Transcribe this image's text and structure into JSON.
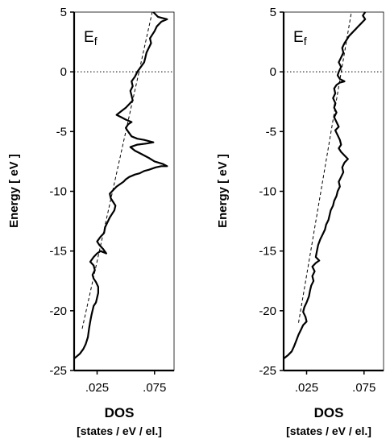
{
  "chart_data": [
    {
      "type": "line",
      "title": "",
      "xlabel": "DOS",
      "xlabel_units": "[states / eV / el.]",
      "ylabel": "Energy",
      "ylabel_units": "[ eV ]",
      "xlim": [
        0.005,
        0.092
      ],
      "ylim": [
        -25,
        5
      ],
      "xticks": [
        ".025",
        ".075"
      ],
      "xtick_values": [
        0.025,
        0.075
      ],
      "yticks": [
        "5",
        "0",
        "-5",
        "-10",
        "-15",
        "-20",
        "-25"
      ],
      "ytick_values": [
        5,
        0,
        -5,
        -10,
        -15,
        -20,
        -25
      ],
      "fermi_level": {
        "label": "E",
        "subscript": "f",
        "energy": 0,
        "style": "dotted"
      },
      "grid": false,
      "series": [
        {
          "style": "solid",
          "points": [
            [
              0.005,
              -24.0
            ],
            [
              0.01,
              -23.6
            ],
            [
              0.013,
              -23.2
            ],
            [
              0.015,
              -22.8
            ],
            [
              0.017,
              -22.2
            ],
            [
              0.018,
              -21.5
            ],
            [
              0.019,
              -20.9
            ],
            [
              0.02,
              -20.4
            ],
            [
              0.021,
              -20.0
            ],
            [
              0.022,
              -19.6
            ],
            [
              0.024,
              -19.3
            ],
            [
              0.025,
              -18.9
            ],
            [
              0.026,
              -18.5
            ],
            [
              0.026,
              -18.0
            ],
            [
              0.024,
              -17.6
            ],
            [
              0.022,
              -17.3
            ],
            [
              0.021,
              -17.0
            ],
            [
              0.023,
              -16.6
            ],
            [
              0.022,
              -16.2
            ],
            [
              0.019,
              -15.9
            ],
            [
              0.022,
              -15.5
            ],
            [
              0.025,
              -15.2
            ],
            [
              0.028,
              -15.0
            ],
            [
              0.033,
              -15.2
            ],
            [
              0.03,
              -14.8
            ],
            [
              0.027,
              -14.5
            ],
            [
              0.025,
              -14.2
            ],
            [
              0.028,
              -13.8
            ],
            [
              0.031,
              -13.5
            ],
            [
              0.032,
              -13.0
            ],
            [
              0.034,
              -12.6
            ],
            [
              0.036,
              -12.2
            ],
            [
              0.038,
              -11.9
            ],
            [
              0.04,
              -11.6
            ],
            [
              0.041,
              -11.2
            ],
            [
              0.039,
              -10.9
            ],
            [
              0.037,
              -10.6
            ],
            [
              0.036,
              -10.2
            ],
            [
              0.039,
              -9.9
            ],
            [
              0.042,
              -9.6
            ],
            [
              0.045,
              -9.4
            ],
            [
              0.048,
              -9.2
            ],
            [
              0.05,
              -9.0
            ],
            [
              0.053,
              -8.8
            ],
            [
              0.058,
              -8.6
            ],
            [
              0.062,
              -8.5
            ],
            [
              0.066,
              -8.3
            ],
            [
              0.07,
              -8.2
            ],
            [
              0.076,
              -8.0
            ],
            [
              0.081,
              -7.9
            ],
            [
              0.086,
              -7.9
            ],
            [
              0.082,
              -7.7
            ],
            [
              0.075,
              -7.5
            ],
            [
              0.07,
              -7.2
            ],
            [
              0.066,
              -7.0
            ],
            [
              0.062,
              -6.8
            ],
            [
              0.058,
              -6.6
            ],
            [
              0.054,
              -6.3
            ],
            [
              0.06,
              -6.1
            ],
            [
              0.068,
              -6.0
            ],
            [
              0.074,
              -5.9
            ],
            [
              0.066,
              -5.7
            ],
            [
              0.06,
              -5.6
            ],
            [
              0.055,
              -5.4
            ],
            [
              0.052,
              -5.0
            ],
            [
              0.05,
              -4.7
            ],
            [
              0.052,
              -4.4
            ],
            [
              0.055,
              -4.2
            ],
            [
              0.05,
              -4.0
            ],
            [
              0.046,
              -3.8
            ],
            [
              0.042,
              -3.6
            ],
            [
              0.046,
              -3.3
            ],
            [
              0.05,
              -3.0
            ],
            [
              0.053,
              -2.7
            ],
            [
              0.056,
              -2.4
            ],
            [
              0.055,
              -2.0
            ],
            [
              0.054,
              -1.6
            ],
            [
              0.056,
              -1.2
            ],
            [
              0.055,
              -0.8
            ],
            [
              0.058,
              -0.4
            ],
            [
              0.06,
              0.0
            ],
            [
              0.063,
              0.4
            ],
            [
              0.066,
              0.8
            ],
            [
              0.067,
              1.2
            ],
            [
              0.068,
              1.6
            ],
            [
              0.07,
              2.0
            ],
            [
              0.072,
              2.4
            ],
            [
              0.071,
              2.8
            ],
            [
              0.073,
              3.1
            ],
            [
              0.075,
              3.4
            ],
            [
              0.077,
              3.8
            ],
            [
              0.081,
              4.2
            ],
            [
              0.086,
              4.4
            ],
            [
              0.078,
              4.6
            ],
            [
              0.076,
              4.8
            ],
            [
              0.074,
              5.0
            ]
          ]
        },
        {
          "style": "dashed",
          "points": [
            [
              0.012,
              -21.5
            ],
            [
              0.073,
              5.0
            ]
          ]
        }
      ]
    },
    {
      "type": "line",
      "title": "",
      "xlabel": "DOS",
      "xlabel_units": "[states / eV / el.]",
      "ylabel": "Energy",
      "ylabel_units": "[ eV ]",
      "xlim": [
        0.005,
        0.092
      ],
      "ylim": [
        -25,
        5
      ],
      "xticks": [
        ".025",
        ".075"
      ],
      "xtick_values": [
        0.025,
        0.075
      ],
      "yticks": [
        "5",
        "0",
        "-5",
        "-10",
        "-15",
        "-20",
        "-25"
      ],
      "ytick_values": [
        5,
        0,
        -5,
        -10,
        -15,
        -20,
        -25
      ],
      "fermi_level": {
        "label": "E",
        "subscript": "f",
        "energy": 0,
        "style": "dotted"
      },
      "grid": false,
      "series": [
        {
          "style": "solid",
          "points": [
            [
              0.005,
              -24.0
            ],
            [
              0.009,
              -23.7
            ],
            [
              0.012,
              -23.4
            ],
            [
              0.014,
              -23.0
            ],
            [
              0.016,
              -22.5
            ],
            [
              0.018,
              -22.0
            ],
            [
              0.02,
              -21.6
            ],
            [
              0.022,
              -21.2
            ],
            [
              0.025,
              -20.9
            ],
            [
              0.024,
              -20.5
            ],
            [
              0.022,
              -20.1
            ],
            [
              0.023,
              -19.7
            ],
            [
              0.025,
              -19.3
            ],
            [
              0.027,
              -18.8
            ],
            [
              0.028,
              -18.3
            ],
            [
              0.029,
              -17.9
            ],
            [
              0.031,
              -17.5
            ],
            [
              0.03,
              -17.1
            ],
            [
              0.032,
              -16.7
            ],
            [
              0.03,
              -16.3
            ],
            [
              0.033,
              -16.0
            ],
            [
              0.036,
              -15.8
            ],
            [
              0.033,
              -15.5
            ],
            [
              0.034,
              -15.0
            ],
            [
              0.035,
              -14.5
            ],
            [
              0.037,
              -14.0
            ],
            [
              0.039,
              -13.6
            ],
            [
              0.041,
              -13.2
            ],
            [
              0.042,
              -12.8
            ],
            [
              0.044,
              -12.4
            ],
            [
              0.045,
              -12.0
            ],
            [
              0.046,
              -11.6
            ],
            [
              0.048,
              -11.2
            ],
            [
              0.049,
              -10.8
            ],
            [
              0.051,
              -10.4
            ],
            [
              0.052,
              -10.0
            ],
            [
              0.054,
              -9.6
            ],
            [
              0.053,
              -9.2
            ],
            [
              0.055,
              -8.8
            ],
            [
              0.057,
              -8.4
            ],
            [
              0.056,
              -8.0
            ],
            [
              0.058,
              -7.6
            ],
            [
              0.061,
              -7.3
            ],
            [
              0.058,
              -7.0
            ],
            [
              0.055,
              -6.7
            ],
            [
              0.053,
              -6.4
            ],
            [
              0.055,
              -6.1
            ],
            [
              0.054,
              -5.7
            ],
            [
              0.052,
              -5.3
            ],
            [
              0.05,
              -4.9
            ],
            [
              0.053,
              -4.6
            ],
            [
              0.051,
              -4.2
            ],
            [
              0.049,
              -3.8
            ],
            [
              0.051,
              -3.4
            ],
            [
              0.049,
              -3.0
            ],
            [
              0.05,
              -2.6
            ],
            [
              0.048,
              -2.2
            ],
            [
              0.05,
              -1.8
            ],
            [
              0.049,
              -1.4
            ],
            [
              0.051,
              -1.1
            ],
            [
              0.054,
              -0.9
            ],
            [
              0.058,
              -0.8
            ],
            [
              0.054,
              -0.6
            ],
            [
              0.052,
              -0.3
            ],
            [
              0.053,
              0.0
            ],
            [
              0.055,
              0.4
            ],
            [
              0.053,
              0.8
            ],
            [
              0.055,
              1.2
            ],
            [
              0.057,
              1.6
            ],
            [
              0.056,
              2.0
            ],
            [
              0.058,
              2.4
            ],
            [
              0.06,
              2.7
            ],
            [
              0.062,
              3.0
            ],
            [
              0.064,
              3.2
            ],
            [
              0.066,
              3.4
            ],
            [
              0.068,
              3.6
            ],
            [
              0.07,
              3.8
            ],
            [
              0.072,
              4.0
            ],
            [
              0.074,
              4.2
            ],
            [
              0.076,
              4.4
            ],
            [
              0.074,
              4.7
            ],
            [
              0.076,
              5.0
            ]
          ]
        },
        {
          "style": "dashed",
          "points": [
            [
              0.018,
              -21.0
            ],
            [
              0.064,
              5.0
            ]
          ]
        }
      ]
    }
  ]
}
